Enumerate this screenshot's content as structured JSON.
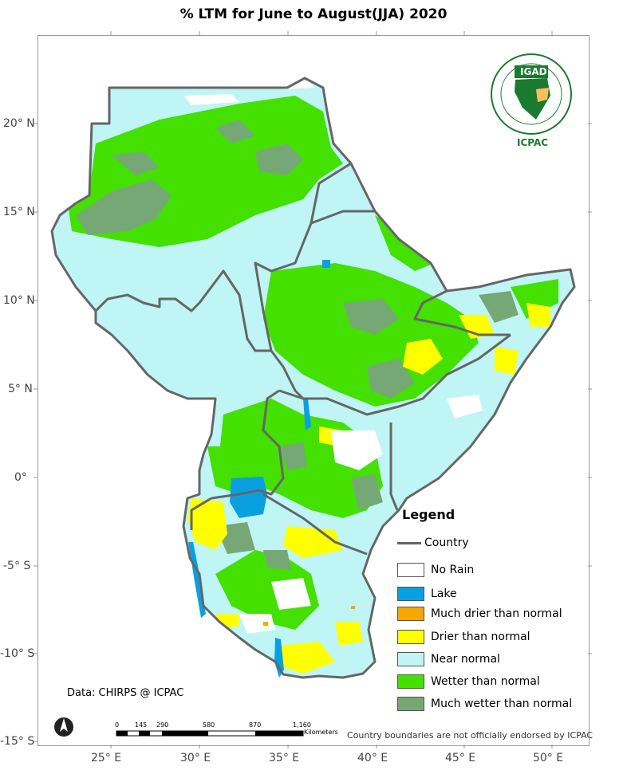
{
  "title": "% LTM  for June to August(JJA)  2020",
  "axes": {
    "lat_labels": [
      "20° N",
      "15° N",
      "10° N",
      "5° N",
      "0°",
      "-5° S",
      "-10° S",
      "-15° S"
    ],
    "lon_labels": [
      "25° E",
      "30° E",
      "35° E",
      "40° E",
      "45° E",
      "50° E"
    ]
  },
  "legend": {
    "title": "Legend",
    "items": [
      {
        "label": "Country",
        "kind": "line",
        "color": "#666666"
      },
      {
        "label": "No Rain",
        "kind": "box",
        "color": "#ffffff"
      },
      {
        "label": "Lake",
        "kind": "box",
        "color": "#0aa0e0"
      },
      {
        "label": "Much drier than normal",
        "kind": "box",
        "color": "#f5a800"
      },
      {
        "label": "Drier than normal",
        "kind": "box",
        "color": "#ffff00"
      },
      {
        "label": "Near normal",
        "kind": "box",
        "color": "#bff5f5"
      },
      {
        "label": "Wetter than normal",
        "kind": "box",
        "color": "#44e000"
      },
      {
        "label": "Much wetter than normal",
        "kind": "box",
        "color": "#76a876"
      }
    ]
  },
  "source_text": "Data: CHIRPS @ ICPAC",
  "disclaimer": "Country boundaries are not officially endorsed by ICPAC",
  "scale_bar": {
    "ticks": [
      "0",
      "145",
      "290",
      "580",
      "870",
      "1,160"
    ],
    "unit": "Kilometers"
  },
  "logo": {
    "inner_text": "IGAD",
    "caption": "ICPAC"
  },
  "colors": {
    "near_normal": "#bff5f5",
    "wetter": "#44e000",
    "much_wetter": "#76a876",
    "drier": "#ffff00",
    "much_drier": "#f5a800",
    "lake": "#0aa0e0",
    "no_rain": "#ffffff",
    "border": "#666666"
  }
}
